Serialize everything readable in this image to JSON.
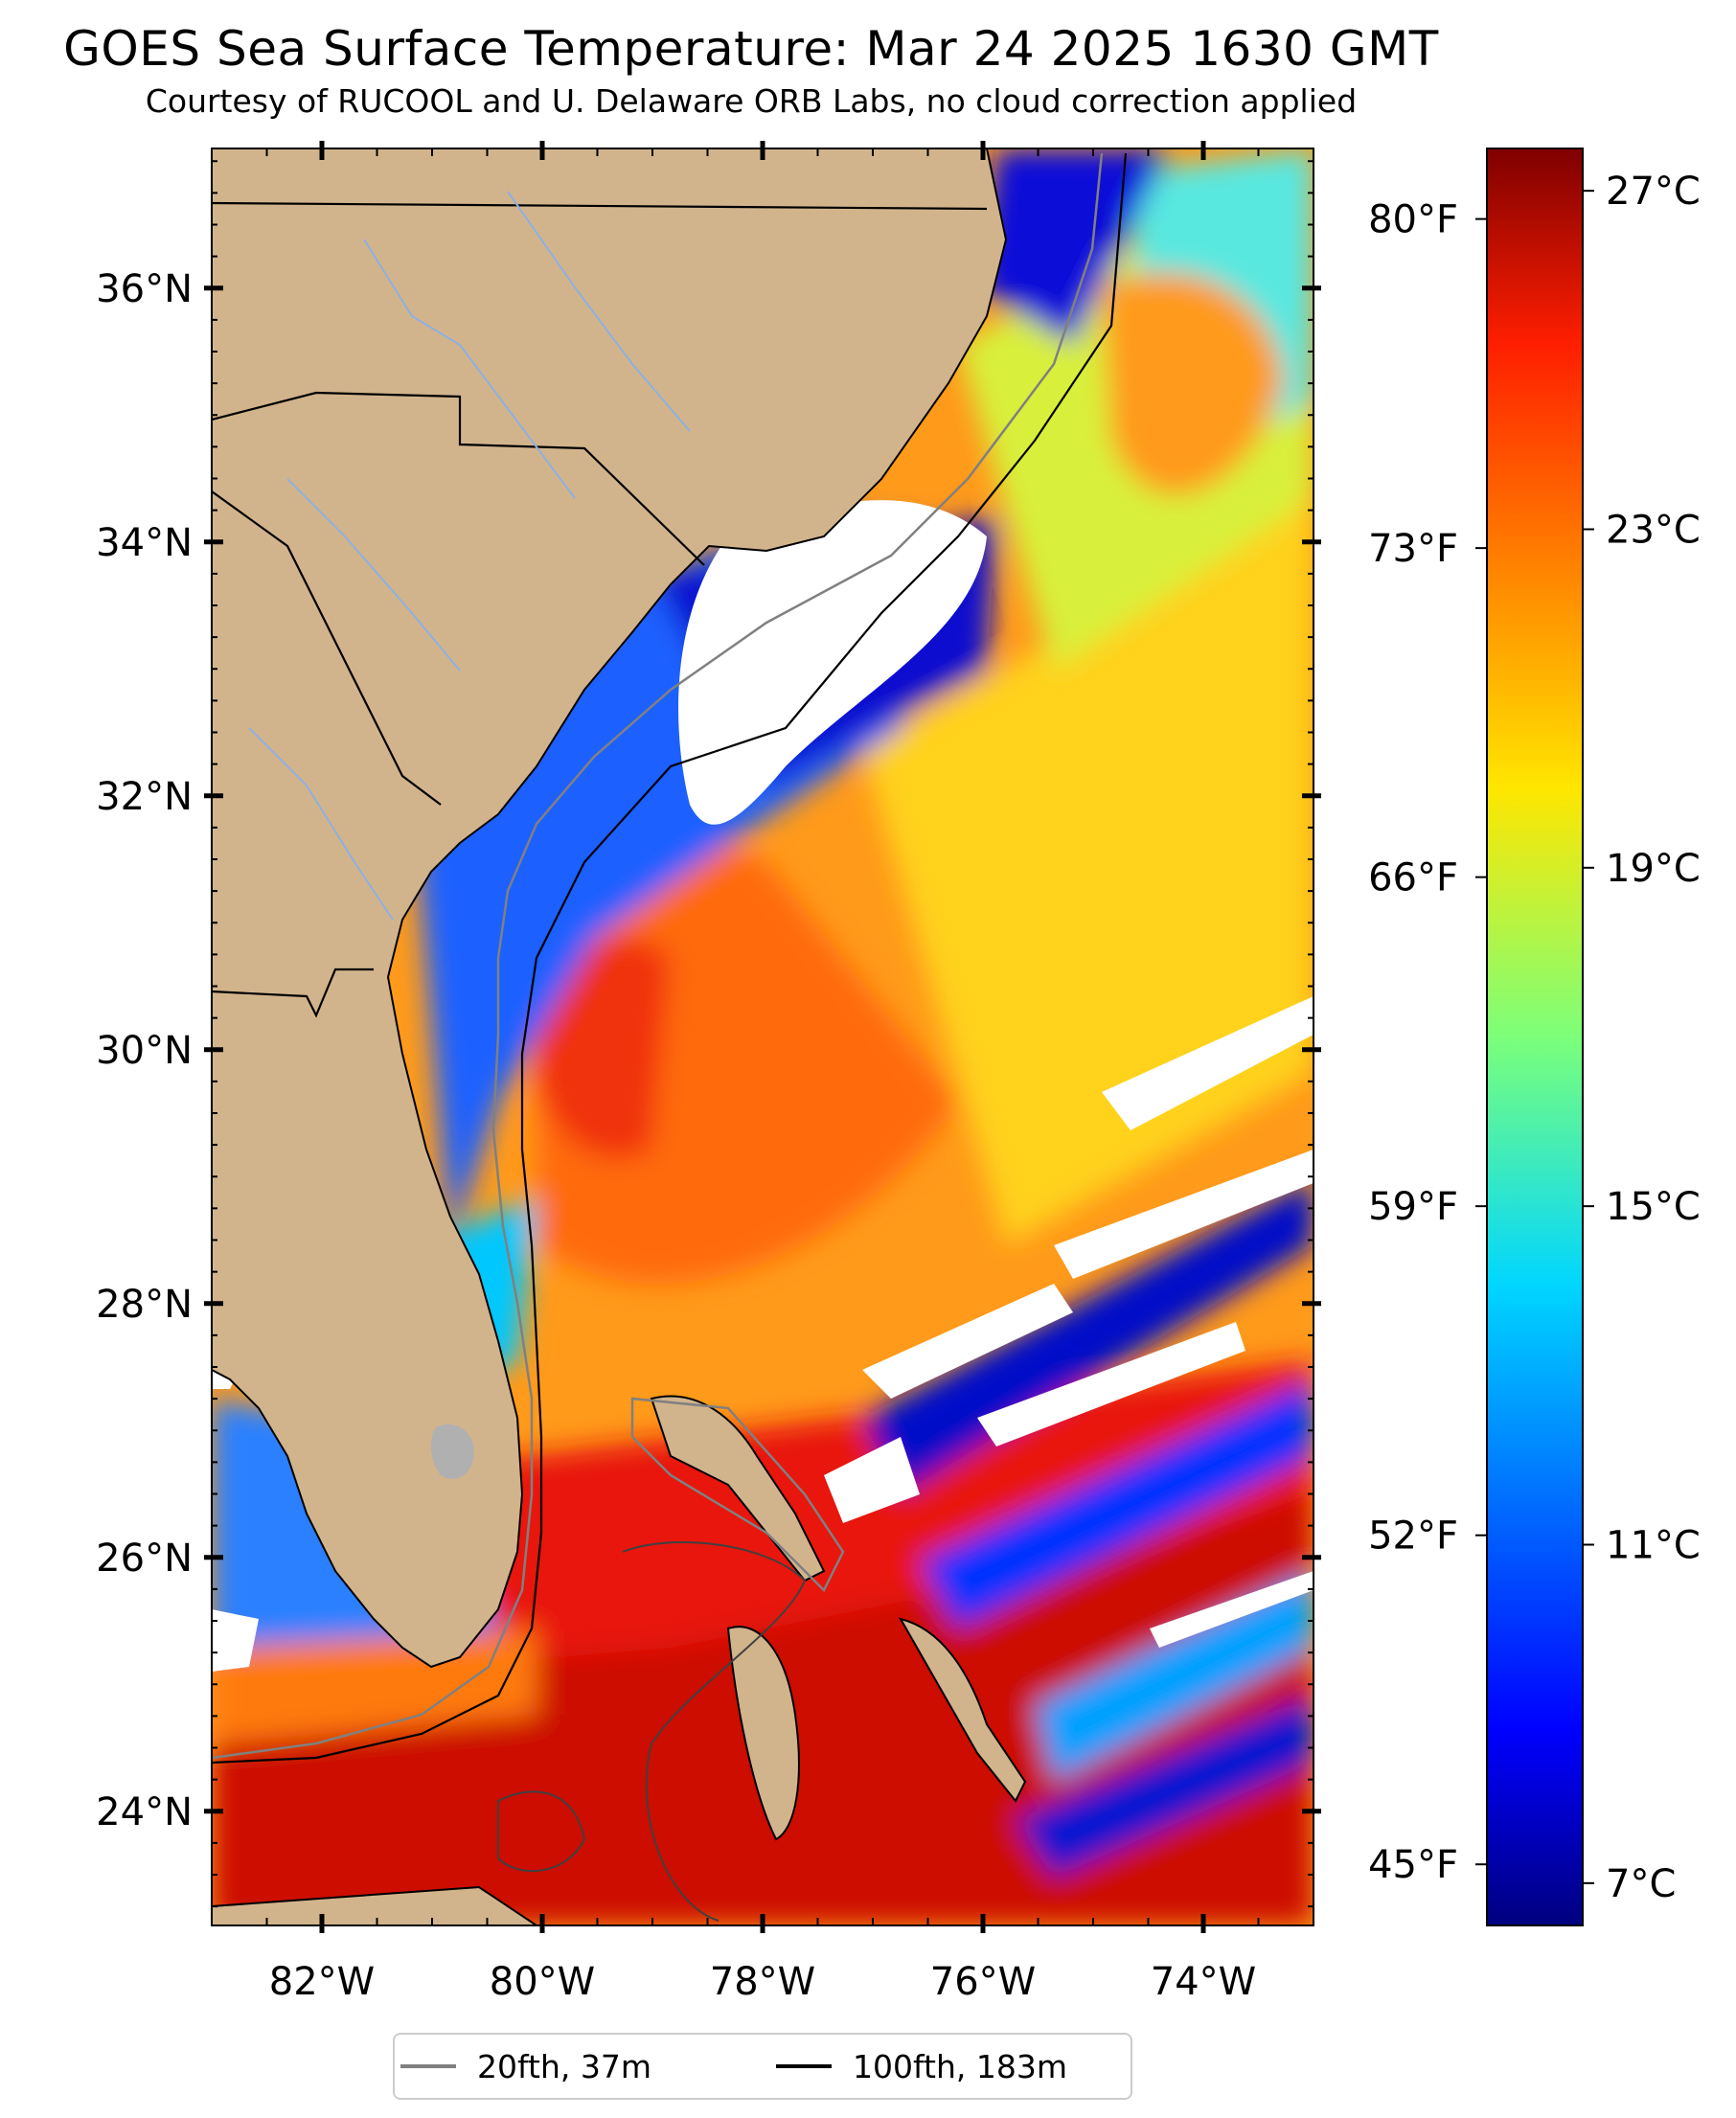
{
  "title": "GOES Sea Surface Temperature: Mar 24 2025 1630 GMT",
  "subtitle": "Courtesy of RUCOOL and U. Delaware ORB Labs, no cloud correction applied",
  "map": {
    "lon_range": [
      -83,
      -73
    ],
    "lat_range": [
      23.1,
      37.1
    ],
    "lon_ticks": [
      {
        "value": -82,
        "label": "82°W"
      },
      {
        "value": -80,
        "label": "80°W"
      },
      {
        "value": -78,
        "label": "78°W"
      },
      {
        "value": -76,
        "label": "76°W"
      },
      {
        "value": -74,
        "label": "74°W"
      }
    ],
    "lat_ticks": [
      {
        "value": 24,
        "label": "24°N"
      },
      {
        "value": 26,
        "label": "26°N"
      },
      {
        "value": 28,
        "label": "28°N"
      },
      {
        "value": 30,
        "label": "30°N"
      },
      {
        "value": 32,
        "label": "32°N"
      },
      {
        "value": 34,
        "label": "34°N"
      },
      {
        "value": 36,
        "label": "36°N"
      }
    ],
    "land_color": "#d2b48c",
    "no_data_color": "#ffffff"
  },
  "colorbar": {
    "colormap": "jet",
    "celsius_range": [
      6.5,
      27.5
    ],
    "celsius_ticks": [
      {
        "value": 7,
        "label": "7°C"
      },
      {
        "value": 11,
        "label": "11°C"
      },
      {
        "value": 15,
        "label": "15°C"
      },
      {
        "value": 19,
        "label": "19°C"
      },
      {
        "value": 23,
        "label": "23°C"
      },
      {
        "value": 27,
        "label": "27°C"
      }
    ],
    "fahrenheit_ticks": [
      {
        "value": 45,
        "label": "45°F"
      },
      {
        "value": 52,
        "label": "52°F"
      },
      {
        "value": 59,
        "label": "59°F"
      },
      {
        "value": 66,
        "label": "66°F"
      },
      {
        "value": 73,
        "label": "73°F"
      },
      {
        "value": 80,
        "label": "80°F"
      }
    ]
  },
  "legend": {
    "items": [
      {
        "label": "20fth, 37m",
        "color": "#808080"
      },
      {
        "label": "100fth, 183m",
        "color": "#000000"
      }
    ]
  }
}
